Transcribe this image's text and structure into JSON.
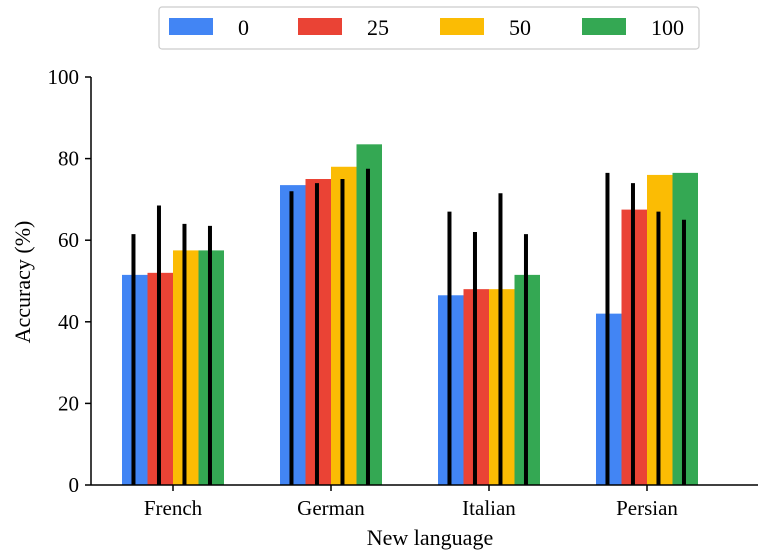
{
  "chart_data": {
    "type": "bar",
    "xlabel": "New language",
    "ylabel": "Accuracy (%)",
    "ylim": [
      0,
      100
    ],
    "yticks": [
      0,
      20,
      40,
      60,
      80,
      100
    ],
    "categories": [
      "French",
      "German",
      "Italian",
      "Persian"
    ],
    "legend_position": "top-center",
    "grid": false,
    "series": [
      {
        "name": "0",
        "color": "#4285F4",
        "values": [
          51.5,
          73.5,
          46.5,
          42.0
        ],
        "error_upper": [
          61.5,
          72.0,
          67.0,
          76.5
        ]
      },
      {
        "name": "25",
        "color": "#EA4335",
        "values": [
          52.0,
          75.0,
          48.0,
          67.5
        ],
        "error_upper": [
          68.5,
          74.0,
          62.0,
          74.0
        ]
      },
      {
        "name": "50",
        "color": "#FBBC04",
        "values": [
          57.5,
          78.0,
          48.0,
          76.0
        ],
        "error_upper": [
          64.0,
          75.0,
          71.5,
          67.0
        ]
      },
      {
        "name": "100",
        "color": "#34A853",
        "values": [
          57.5,
          83.5,
          51.5,
          76.5
        ],
        "error_upper": [
          63.5,
          77.5,
          61.5,
          65.0
        ]
      }
    ]
  }
}
